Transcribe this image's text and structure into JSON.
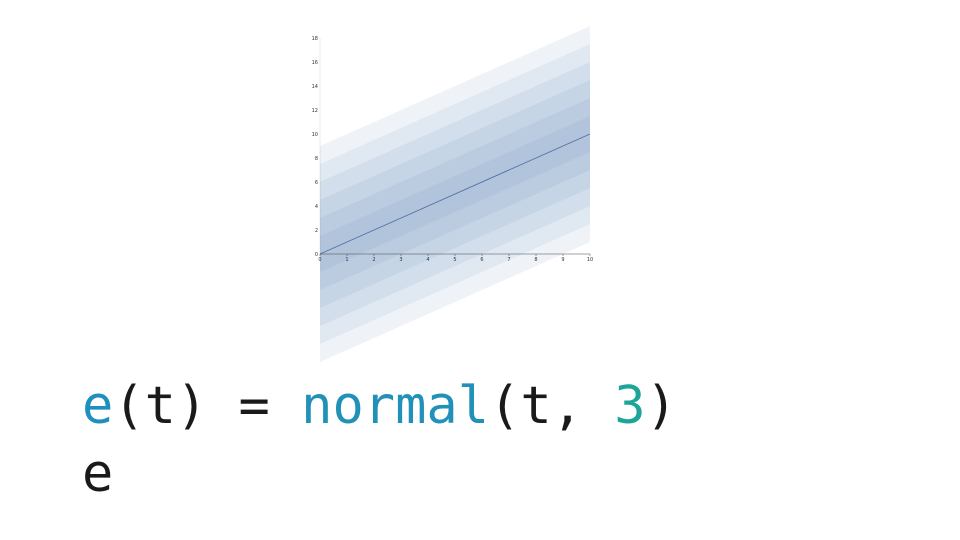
{
  "chart_data": {
    "type": "area",
    "title": "",
    "xlabel": "",
    "ylabel": "",
    "x": [
      0,
      10
    ],
    "mean": [
      0,
      10
    ],
    "sigma": 3,
    "band_sigma_multiples": [
      0.5,
      1.0,
      1.5,
      2.0,
      2.5,
      3.0
    ],
    "xlim": [
      0,
      10
    ],
    "ylim": [
      0,
      18
    ],
    "x_ticks": [
      "0",
      "1",
      "2",
      "3",
      "4",
      "5",
      "6",
      "7",
      "8",
      "9",
      "10"
    ],
    "y_ticks": [
      "0",
      "2",
      "4",
      "6",
      "8",
      "10",
      "12",
      "14",
      "16",
      "18"
    ],
    "grid": false,
    "colors": {
      "line": "#4a6fa5",
      "band": "#4f78ad",
      "axis": "#444444"
    }
  },
  "code": {
    "line1": {
      "var": "e",
      "open_paren": "(",
      "arg": "t",
      "close_paren": ")",
      "equals": " = ",
      "func": "normal",
      "open_paren2": "(",
      "param1": "t",
      "comma": ", ",
      "param2": "3",
      "close_paren2": ")"
    },
    "line2": "e",
    "colors": {
      "var": "#1f8fc0",
      "func": "#2191b8",
      "number": "#1ea59a",
      "text": "#1a1a1a"
    }
  }
}
